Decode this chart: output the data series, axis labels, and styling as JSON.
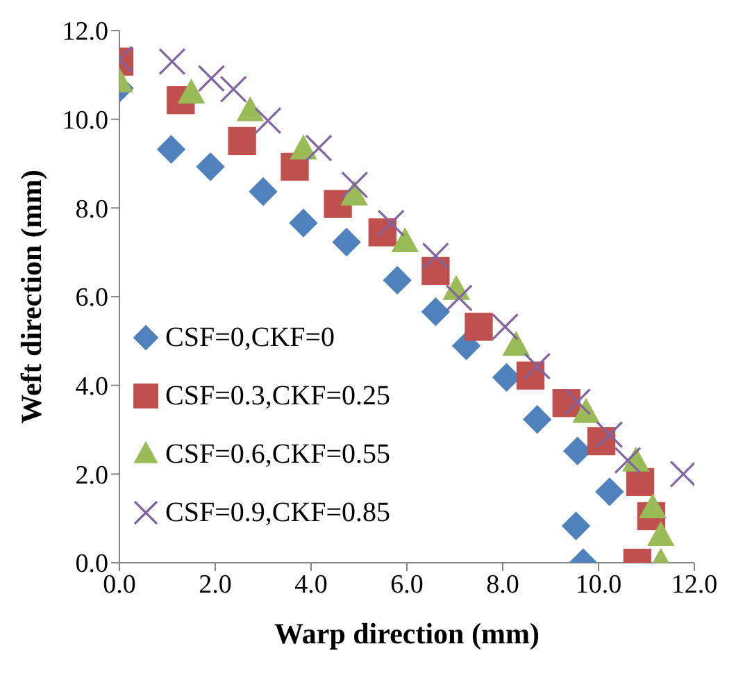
{
  "chart_data": {
    "type": "scatter",
    "xlabel": "Warp direction (mm)",
    "ylabel": "Weft direction (mm)",
    "xlim": [
      0,
      12
    ],
    "ylim": [
      0,
      12
    ],
    "xticks": [
      {
        "value": 0,
        "label": "0.0"
      },
      {
        "value": 2,
        "label": "2.0"
      },
      {
        "value": 4,
        "label": "4.0"
      },
      {
        "value": 6,
        "label": "6.0"
      },
      {
        "value": 8,
        "label": "8.0"
      },
      {
        "value": 10,
        "label": "10.0"
      },
      {
        "value": 12,
        "label": "12.0"
      }
    ],
    "yticks": [
      {
        "value": 0,
        "label": "0.0"
      },
      {
        "value": 2,
        "label": "2.0"
      },
      {
        "value": 4,
        "label": "4.0"
      },
      {
        "value": 6,
        "label": "6.0"
      },
      {
        "value": 8,
        "label": "8.0"
      },
      {
        "value": 10,
        "label": "10.0"
      },
      {
        "value": 12,
        "label": "12.0"
      }
    ],
    "grid": false,
    "legend": "bottom left",
    "series": [
      {
        "name": "CSF=0,CKF=0",
        "color": "#4f81bd",
        "marker": "diamond",
        "x": [
          0,
          1.08,
          1.9,
          3.0,
          3.84,
          4.74,
          5.8,
          6.6,
          7.24,
          8.08,
          8.72,
          9.56,
          10.23,
          9.53,
          9.68
        ],
        "values": [
          10.7,
          9.32,
          8.93,
          8.37,
          7.66,
          7.23,
          6.37,
          5.66,
          4.89,
          4.18,
          3.23,
          2.52,
          1.6,
          0.83,
          0
        ]
      },
      {
        "name": "CSF=0.3,CKF=0.25",
        "color": "#c0504d",
        "marker": "square",
        "x": [
          0,
          1.28,
          2.56,
          3.66,
          4.56,
          5.49,
          6.6,
          7.5,
          8.58,
          9.33,
          10.06,
          10.87,
          11.1,
          10.81
        ],
        "values": [
          11.3,
          10.43,
          9.51,
          8.93,
          8.09,
          7.45,
          6.58,
          5.32,
          4.22,
          3.6,
          2.74,
          1.82,
          1.05,
          0
        ]
      },
      {
        "name": "CSF=0.6,CKF=0.55",
        "color": "#9bbb59",
        "marker": "triangle",
        "x": [
          0,
          1.5,
          2.73,
          3.84,
          4.9,
          5.96,
          7.03,
          8.28,
          9.74,
          10.78,
          11.13,
          11.3,
          11.3
        ],
        "values": [
          10.83,
          10.58,
          10.18,
          9.32,
          8.28,
          7.23,
          6.15,
          4.89,
          3.38,
          2.28,
          1.23,
          0.6,
          0
        ]
      },
      {
        "name": "CSF=0.9,CKF=0.85",
        "color": "#8064a2",
        "marker": "cross",
        "x": [
          0,
          1.1,
          1.92,
          2.38,
          3.1,
          4.16,
          4.91,
          5.67,
          6.6,
          7.09,
          8.05,
          8.72,
          9.56,
          10.23,
          10.61,
          11.77
        ],
        "values": [
          11.35,
          11.3,
          10.92,
          10.68,
          9.97,
          9.35,
          8.52,
          7.66,
          6.92,
          5.97,
          5.32,
          4.43,
          3.63,
          2.89,
          2.31,
          2.0
        ]
      }
    ]
  }
}
